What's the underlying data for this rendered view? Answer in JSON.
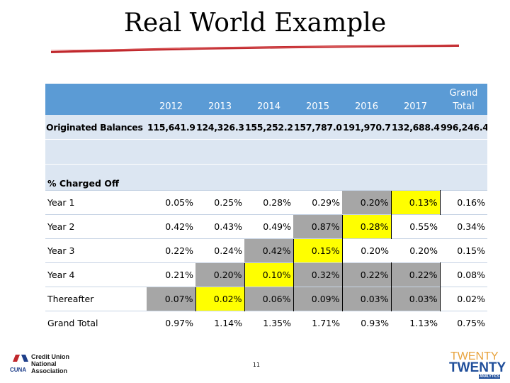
{
  "title": "Real World Example",
  "table": {
    "headers": [
      "",
      "2012",
      "2013",
      "2014",
      "2015",
      "2016",
      "2017",
      "Grand Total"
    ],
    "originated": {
      "label": "Originated Balances",
      "values": [
        "115,641.9",
        "124,326.3",
        "155,252.2",
        "157,787.0",
        "191,970.7",
        "132,688.4",
        "996,246.4"
      ]
    },
    "section_label": "% Charged Off",
    "rows": [
      {
        "label": "Year 1",
        "values": [
          "0.05%",
          "0.25%",
          "0.28%",
          "0.29%",
          "0.20%",
          "0.13%",
          "0.16%"
        ]
      },
      {
        "label": "Year 2",
        "values": [
          "0.42%",
          "0.43%",
          "0.49%",
          "0.87%",
          "0.28%",
          "0.55%",
          "0.34%"
        ]
      },
      {
        "label": "Year 3",
        "values": [
          "0.22%",
          "0.24%",
          "0.42%",
          "0.15%",
          "0.20%",
          "0.20%",
          "0.15%"
        ]
      },
      {
        "label": "Year 4",
        "values": [
          "0.21%",
          "0.20%",
          "0.10%",
          "0.32%",
          "0.22%",
          "0.22%",
          "0.08%"
        ]
      },
      {
        "label": "Thereafter",
        "values": [
          "0.07%",
          "0.02%",
          "0.06%",
          "0.09%",
          "0.03%",
          "0.03%",
          "0.02%"
        ]
      },
      {
        "label": "Grand Total",
        "values": [
          "0.97%",
          "1.14%",
          "1.35%",
          "1.71%",
          "0.93%",
          "1.13%",
          "0.75%"
        ]
      }
    ]
  },
  "colors": {
    "header_bg": "#5b9bd5",
    "band_bg": "#dce6f2",
    "highlight_yellow": "#ffff00",
    "highlight_gray": "#a6a6a6",
    "title_rule": "#c0282d"
  },
  "footer": {
    "page_number": "11",
    "logo_left": {
      "line1": "Credit Union",
      "line2": "National",
      "line3": "Association",
      "mark": "CUNA"
    },
    "logo_right": {
      "line1": "TWENTY",
      "line2": "TWENTY",
      "line3": "ANALYTICS"
    }
  }
}
